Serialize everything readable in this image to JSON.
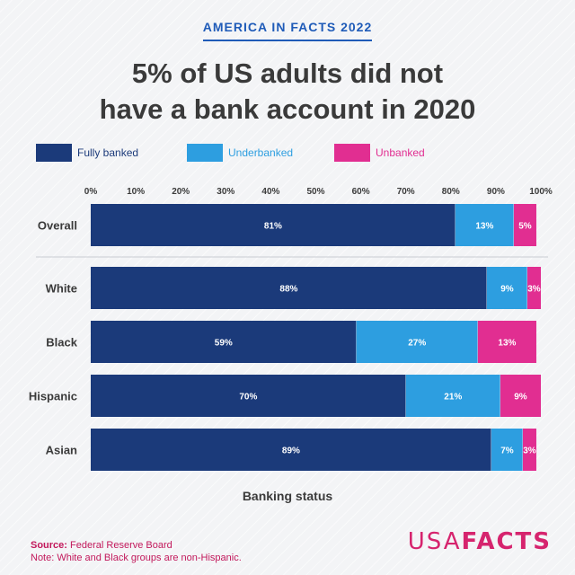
{
  "header": {
    "kicker": "AMERICA IN FACTS 2022",
    "title_line1": "5% of US adults did not",
    "title_line2": "have a bank account in 2020"
  },
  "colors": {
    "fully_banked": "#1b3a7a",
    "underbanked": "#2d9ee0",
    "unbanked": "#e12e91",
    "text": "#3a3a3a"
  },
  "chart_data": {
    "type": "bar",
    "orientation": "horizontal",
    "stacked": true,
    "title": "5% of US adults did not have a bank account in 2020",
    "xlabel": "Banking status",
    "ylabel": "",
    "xlim": [
      0,
      100
    ],
    "x_ticks": [
      "0%",
      "10%",
      "20%",
      "30%",
      "40%",
      "50%",
      "60%",
      "70%",
      "80%",
      "90%",
      "100%"
    ],
    "legend_position": "top",
    "categories": [
      "Overall",
      "White",
      "Black",
      "Hispanic",
      "Asian"
    ],
    "series": [
      {
        "name": "Fully banked",
        "values": [
          81,
          88,
          59,
          70,
          89
        ],
        "labels": [
          "81%",
          "88%",
          "59%",
          "70%",
          "89%"
        ]
      },
      {
        "name": "Underbanked",
        "values": [
          13,
          9,
          27,
          21,
          7
        ],
        "labels": [
          "13%",
          "9%",
          "27%",
          "21%",
          "7%"
        ]
      },
      {
        "name": "Unbanked",
        "values": [
          5,
          3,
          13,
          9,
          3
        ],
        "labels": [
          "5%",
          "3%",
          "13%",
          "9%",
          "3%"
        ]
      }
    ]
  },
  "footer": {
    "source_label": "Source:",
    "source_text": "Federal Reserve Board",
    "note": "Note: White and Black groups are non-Hispanic.",
    "logo_light": "USA",
    "logo_bold": "FACTS"
  }
}
